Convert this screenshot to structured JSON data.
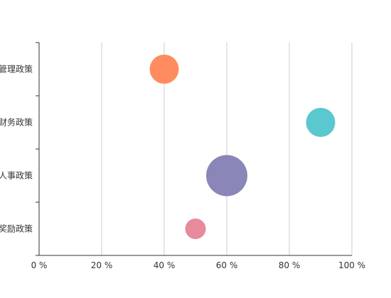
{
  "chart_data": {
    "type": "scatter",
    "title": "",
    "xlabel": "",
    "ylabel": "",
    "xlim": [
      0,
      100
    ],
    "x_ticks": [
      "0 %",
      "20 %",
      "40 %",
      "60 %",
      "80 %",
      "100 %"
    ],
    "grid": "vertical",
    "categories": [
      "管理政策",
      "财务政策",
      "人事政策",
      "奖励政策"
    ],
    "points": [
      {
        "category": "管理政策",
        "x": 40,
        "size": 50,
        "color": "#FF8C5E"
      },
      {
        "category": "财务政策",
        "x": 90,
        "size": 50,
        "color": "#5BC7CF"
      },
      {
        "category": "人事政策",
        "x": 60,
        "size": 100,
        "color": "#8A86B8"
      },
      {
        "category": "奖励政策",
        "x": 50,
        "size": 25,
        "color": "#E8899C"
      }
    ]
  }
}
